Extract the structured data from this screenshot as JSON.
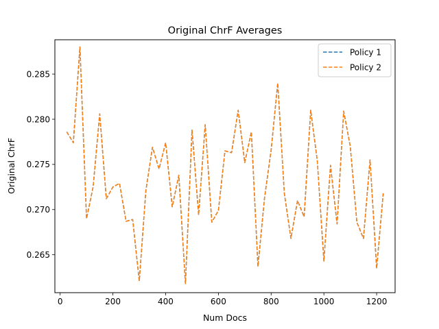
{
  "chart_data": {
    "type": "line",
    "title": "Original ChrF Averages",
    "xlabel": "Num Docs",
    "ylabel": "Original ChrF",
    "xlim": [
      -20,
      1270
    ],
    "ylim": [
      0.2608,
      0.2888
    ],
    "xticks": [
      0,
      200,
      400,
      600,
      800,
      1000,
      1200
    ],
    "xtick_labels": [
      "0",
      "200",
      "400",
      "600",
      "800",
      "1000",
      "1200"
    ],
    "yticks": [
      0.265,
      0.27,
      0.275,
      0.28,
      0.285
    ],
    "ytick_labels": [
      "0.265",
      "0.270",
      "0.275",
      "0.280",
      "0.285"
    ],
    "grid": false,
    "legend_position": "top-right",
    "x": [
      25,
      50,
      75,
      100,
      125,
      150,
      175,
      200,
      225,
      250,
      275,
      300,
      325,
      350,
      375,
      400,
      425,
      450,
      475,
      500,
      525,
      550,
      575,
      600,
      625,
      650,
      675,
      700,
      725,
      750,
      775,
      800,
      825,
      850,
      875,
      900,
      925,
      950,
      975,
      1000,
      1025,
      1050,
      1075,
      1100,
      1125,
      1150,
      1175,
      1200,
      1225
    ],
    "series": [
      {
        "name": "Policy 1",
        "color": "#1f77b4",
        "dash": "dashed",
        "values": [
          0.2786,
          0.2774,
          0.288,
          0.269,
          0.2725,
          0.2806,
          0.2712,
          0.2725,
          0.2729,
          0.2687,
          0.2689,
          0.2621,
          0.2721,
          0.2769,
          0.2745,
          0.2774,
          0.2703,
          0.2738,
          0.2618,
          0.2788,
          0.2694,
          0.2794,
          0.2686,
          0.2699,
          0.2765,
          0.2763,
          0.281,
          0.2752,
          0.2786,
          0.2637,
          0.2713,
          0.2766,
          0.284,
          0.2718,
          0.2668,
          0.271,
          0.2692,
          0.281,
          0.2754,
          0.2643,
          0.2749,
          0.2684,
          0.2809,
          0.277,
          0.2686,
          0.2668,
          0.2755,
          0.2635,
          0.2718
        ]
      },
      {
        "name": "Policy 2",
        "color": "#ff7f0e",
        "dash": "dashed",
        "values": [
          0.2786,
          0.2774,
          0.288,
          0.269,
          0.2725,
          0.2806,
          0.2712,
          0.2725,
          0.2729,
          0.2687,
          0.2689,
          0.2621,
          0.2721,
          0.2769,
          0.2745,
          0.2774,
          0.2703,
          0.2738,
          0.2618,
          0.2788,
          0.2694,
          0.2794,
          0.2686,
          0.2699,
          0.2765,
          0.2763,
          0.281,
          0.2752,
          0.2786,
          0.2637,
          0.2713,
          0.2766,
          0.284,
          0.2718,
          0.2668,
          0.271,
          0.2692,
          0.281,
          0.2754,
          0.2643,
          0.2749,
          0.2684,
          0.2809,
          0.277,
          0.2686,
          0.2668,
          0.2755,
          0.2635,
          0.2718
        ]
      }
    ]
  }
}
